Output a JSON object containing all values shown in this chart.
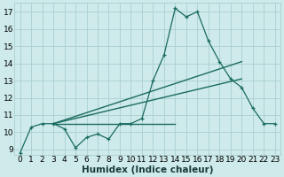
{
  "xlabel": "Humidex (Indice chaleur)",
  "background_color": "#ceeaea",
  "grid_color": "#aacfcf",
  "line_color": "#1a6b60",
  "xlim": [
    -0.5,
    23.5
  ],
  "ylim": [
    8.7,
    17.5
  ],
  "yticks": [
    9,
    10,
    11,
    12,
    13,
    14,
    15,
    16,
    17
  ],
  "xticks": [
    0,
    1,
    2,
    3,
    4,
    5,
    6,
    7,
    8,
    9,
    10,
    11,
    12,
    13,
    14,
    15,
    16,
    17,
    18,
    19,
    20,
    21,
    22,
    23
  ],
  "series1_x": [
    0,
    1,
    2,
    3,
    4,
    5,
    6,
    7,
    8,
    9,
    10,
    11,
    12,
    13,
    14,
    15,
    16,
    17,
    18,
    19,
    20,
    21,
    22,
    23
  ],
  "series1_y": [
    8.8,
    10.3,
    10.5,
    10.5,
    10.2,
    9.1,
    9.7,
    9.9,
    9.6,
    10.5,
    10.5,
    10.8,
    13.0,
    14.5,
    17.2,
    16.7,
    17.0,
    15.3,
    14.1,
    13.1,
    12.6,
    11.4,
    10.5,
    10.5
  ],
  "line2_x": [
    3,
    20
  ],
  "line2_y": [
    10.5,
    14.1
  ],
  "line3_x": [
    3,
    20
  ],
  "line3_y": [
    10.5,
    13.1
  ],
  "line4_x": [
    3,
    14
  ],
  "line4_y": [
    10.5,
    10.5
  ],
  "tick_fontsize": 6.5,
  "label_fontsize": 7.5
}
